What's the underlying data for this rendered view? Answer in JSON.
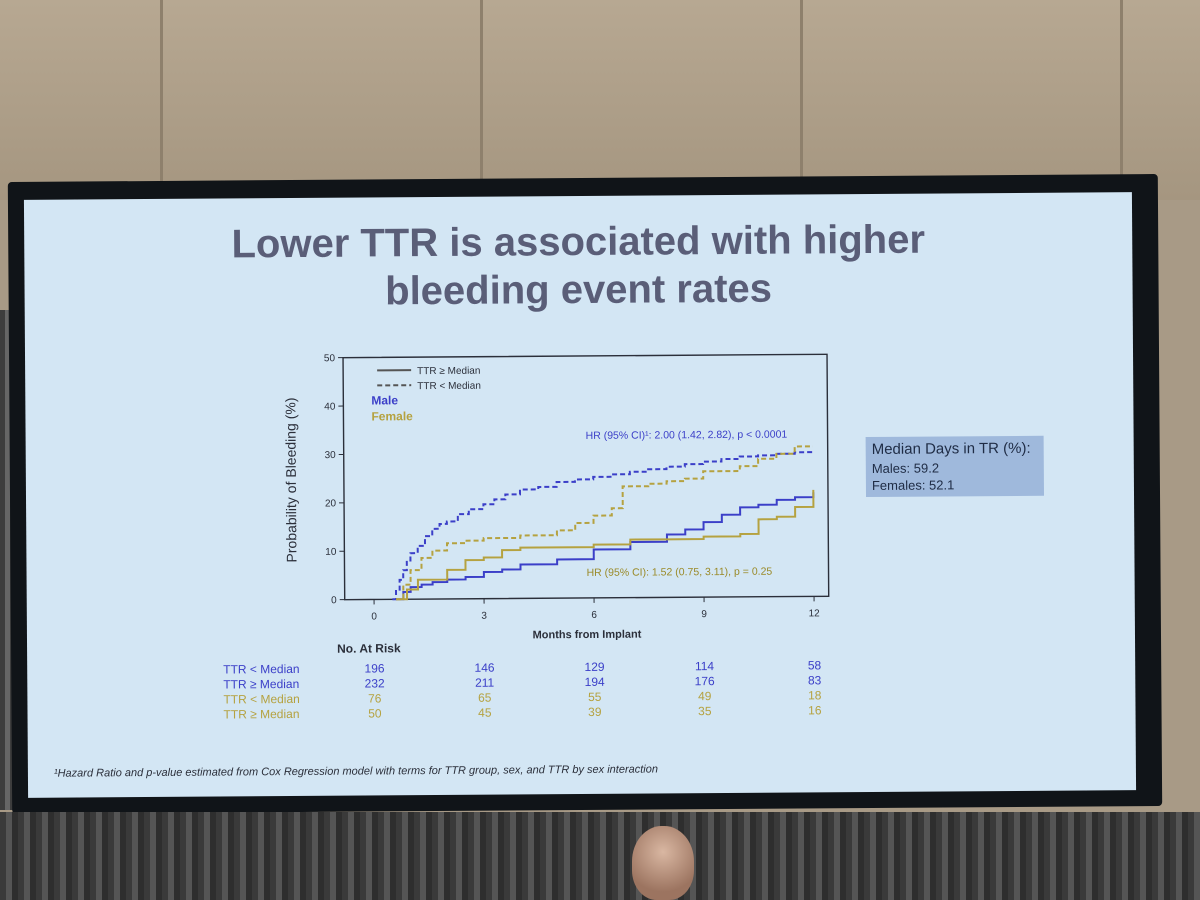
{
  "slide": {
    "title_line1": "Lower TTR is associated with higher",
    "title_line2": "bleeding event rates",
    "footnote": "¹Hazard Ratio and p-value estimated from Cox Regression model with terms for TTR group, sex, and TTR by sex interaction"
  },
  "median_box": {
    "title": "Median Days in TR (%):",
    "males": "Males: 59.2",
    "females": "Females: 52.1"
  },
  "colors": {
    "male": "#3b3fc8",
    "female": "#b5a240",
    "median_box_bg": "#9fb9dc",
    "slide_bg": "#d3e6f4"
  },
  "chart_data": {
    "type": "line",
    "xlabel": "Months from Implant",
    "ylabel": "Probability of Bleeding (%)",
    "xlim": [
      -0.8,
      12.4
    ],
    "ylim": [
      0,
      50
    ],
    "xticks": [
      0,
      3,
      6,
      9,
      12
    ],
    "yticks": [
      0,
      10,
      20,
      30,
      40,
      50
    ],
    "legend": {
      "solid": "TTR ≥ Median",
      "dashed": "TTR < Median",
      "male": "Male",
      "female": "Female"
    },
    "annotations": {
      "hr_male": "HR (95% CI)¹: 2.00 (1.42, 2.82), p < 0.0001",
      "hr_female": "HR (95% CI): 1.52 (0.75, 3.11), p = 0.25"
    },
    "series": [
      {
        "name": "TTR < Median",
        "group": "Male",
        "style": "dashed",
        "color": "#3b3fc8",
        "x": [
          0.5,
          0.6,
          0.7,
          0.8,
          0.9,
          1.0,
          1.2,
          1.4,
          1.6,
          1.8,
          2.0,
          2.3,
          2.6,
          3.0,
          3.3,
          3.6,
          4.0,
          4.5,
          5.0,
          5.5,
          6.0,
          6.5,
          7.0,
          7.5,
          8.0,
          8.5,
          9.0,
          9.5,
          10.0,
          10.5,
          11.0,
          11.5,
          12.0
        ],
        "y": [
          0,
          2,
          4,
          6,
          8,
          9.5,
          11,
          13,
          14.5,
          15.5,
          16,
          17.5,
          18.5,
          19.5,
          20.5,
          21.5,
          22.5,
          23,
          24,
          24.5,
          25,
          25.5,
          26,
          26.5,
          27,
          27.5,
          28,
          28.5,
          29,
          29.2,
          29.5,
          29.8,
          30
        ]
      },
      {
        "name": "TTR ≥ Median",
        "group": "Male",
        "style": "solid",
        "color": "#3b3fc8",
        "x": [
          0.6,
          0.8,
          1.0,
          1.3,
          1.6,
          2.0,
          2.5,
          3.0,
          3.5,
          4.0,
          5.0,
          6.0,
          7.0,
          8.0,
          8.5,
          9.0,
          9.5,
          10.0,
          10.5,
          11.0,
          11.5,
          12.0
        ],
        "y": [
          0,
          1.5,
          2.5,
          3,
          3.5,
          4,
          4.5,
          5.5,
          6,
          7,
          8,
          10,
          11.5,
          13,
          14,
          15.5,
          17,
          18.5,
          19,
          20,
          20.5,
          21.5
        ]
      },
      {
        "name": "TTR < Median",
        "group": "Female",
        "style": "dashed",
        "color": "#b5a240",
        "x": [
          0.6,
          0.8,
          1.0,
          1.3,
          1.6,
          2.0,
          2.5,
          3.0,
          4.0,
          5.0,
          5.5,
          6.0,
          6.5,
          6.8,
          7.5,
          8.0,
          8.5,
          9.0,
          10.0,
          10.5,
          11.0,
          11.5,
          12.0
        ],
        "y": [
          0,
          3,
          6,
          8.5,
          10,
          11.5,
          12,
          12.5,
          13,
          14,
          15.5,
          17,
          18.5,
          23,
          23.5,
          24,
          24.5,
          26,
          27,
          28.5,
          29.5,
          31,
          31
        ]
      },
      {
        "name": "TTR ≥ Median",
        "group": "Female",
        "style": "solid",
        "color": "#b5a240",
        "x": [
          0.6,
          0.9,
          1.2,
          2.0,
          2.5,
          3.0,
          3.5,
          4.0,
          5.0,
          6.0,
          7.0,
          8.0,
          9.0,
          10.0,
          10.5,
          11.0,
          11.5,
          12.0
        ],
        "y": [
          0,
          2,
          4,
          6,
          8,
          8.5,
          10,
          10.5,
          10.5,
          11,
          12,
          12,
          12.5,
          13,
          16,
          16.5,
          18.5,
          22
        ]
      }
    ],
    "at_risk": {
      "header": "No. At Risk",
      "rows": [
        {
          "label": "TTR < Median",
          "color": "#3b3fc8",
          "values": [
            "196",
            "146",
            "129",
            "114",
            "58"
          ]
        },
        {
          "label": "TTR ≥ Median",
          "color": "#3b3fc8",
          "values": [
            "232",
            "211",
            "194",
            "176",
            "83"
          ]
        },
        {
          "label": "TTR < Median",
          "color": "#b5a240",
          "values": [
            "76",
            "65",
            "55",
            "49",
            "18"
          ]
        },
        {
          "label": "TTR ≥ Median",
          "color": "#b5a240",
          "values": [
            "50",
            "45",
            "39",
            "35",
            "16"
          ]
        }
      ]
    }
  }
}
